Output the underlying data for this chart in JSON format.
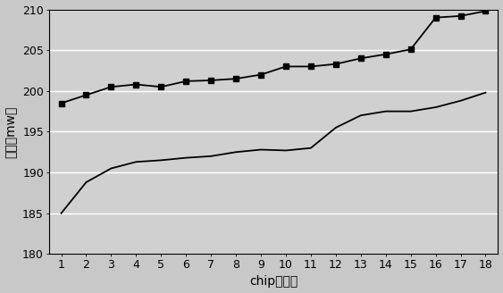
{
  "x": [
    1,
    2,
    3,
    4,
    5,
    6,
    7,
    8,
    9,
    10,
    11,
    12,
    13,
    14,
    15,
    16,
    17,
    18
  ],
  "line1_y": [
    198.5,
    199.5,
    200.5,
    200.8,
    200.5,
    201.2,
    201.3,
    201.5,
    202.0,
    203.0,
    203.0,
    203.3,
    204.0,
    204.5,
    205.1,
    209.0,
    209.2,
    209.8
  ],
  "line2_y": [
    185.0,
    188.8,
    190.5,
    191.3,
    191.5,
    191.8,
    192.0,
    192.5,
    192.8,
    192.7,
    193.0,
    195.5,
    197.0,
    197.5,
    197.5,
    198.0,
    198.8,
    199.8
  ],
  "line1_color": "#000000",
  "line2_color": "#000000",
  "line1_marker": "s",
  "background_color": "#c8c8c8",
  "plot_bg_color": "#d0d0d0",
  "grid_color": "#ffffff",
  "xlabel": "chip（颗）",
  "ylabel": "亮度（mw）",
  "ylim": [
    180,
    210
  ],
  "yticks": [
    180,
    185,
    190,
    195,
    200,
    205,
    210
  ],
  "xlim_min": 0.5,
  "xlim_max": 18.5,
  "xticks": [
    1,
    2,
    3,
    4,
    5,
    6,
    7,
    8,
    9,
    10,
    11,
    12,
    13,
    14,
    15,
    16,
    17,
    18
  ],
  "xlabel_fontsize": 10,
  "ylabel_fontsize": 10,
  "tick_fontsize": 9,
  "line_width": 1.3,
  "marker_size": 4
}
